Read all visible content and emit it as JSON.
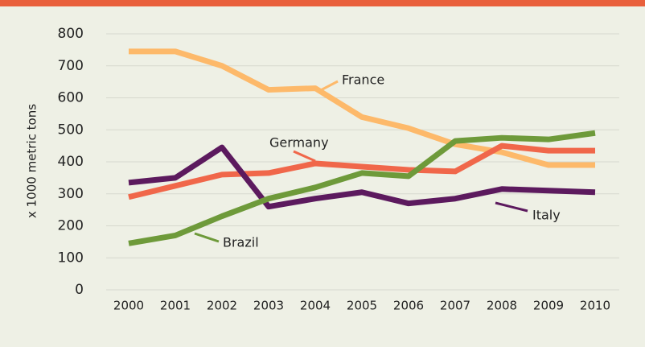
{
  "chart_data": {
    "type": "line",
    "y_axis_label": "x 1000 metric tons",
    "categories": [
      "2000",
      "2001",
      "2002",
      "2003",
      "2004",
      "2005",
      "2006",
      "2007",
      "2008",
      "2009",
      "2010"
    ],
    "series": [
      {
        "name": "France",
        "color": "#fdb96a",
        "values": [
          745,
          745,
          700,
          625,
          630,
          540,
          505,
          455,
          430,
          390,
          390
        ]
      },
      {
        "name": "Germany",
        "color": "#f0674a",
        "values": [
          290,
          325,
          360,
          365,
          395,
          385,
          375,
          370,
          450,
          435,
          435
        ]
      },
      {
        "name": "Italy",
        "color": "#5c1a5e",
        "values": [
          335,
          350,
          445,
          260,
          285,
          305,
          270,
          285,
          315,
          310,
          305
        ]
      },
      {
        "name": "Brazil",
        "color": "#6e9a3a",
        "values": [
          145,
          170,
          230,
          285,
          320,
          365,
          355,
          465,
          475,
          470,
          490
        ]
      }
    ],
    "ylim": [
      0,
      800
    ],
    "yticks": [
      0,
      100,
      200,
      300,
      400,
      500,
      600,
      700,
      800
    ],
    "grid": true
  }
}
